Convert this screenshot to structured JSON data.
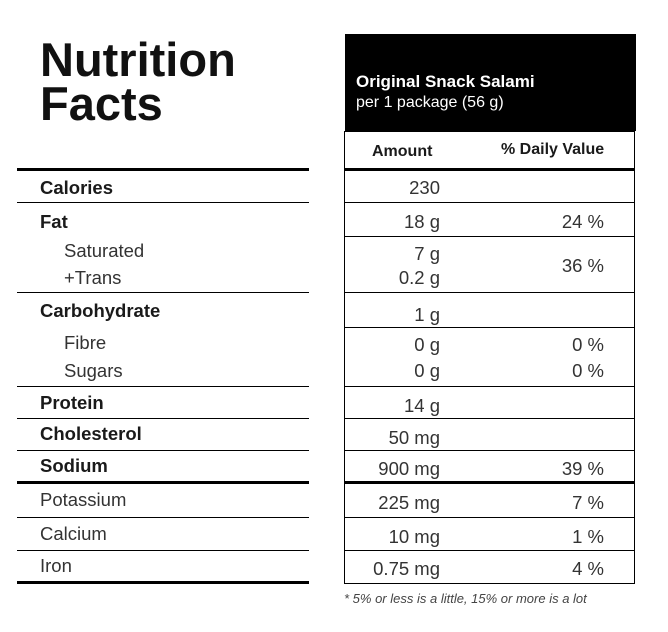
{
  "title": {
    "line1": "Nutrition",
    "line2": "Facts"
  },
  "header": {
    "product": "Original Snack Salami",
    "serving": "per 1 package (56 g)"
  },
  "columns": {
    "amount": "Amount",
    "daily_value": "% Daily Value"
  },
  "rows": {
    "calories": {
      "label": "Calories",
      "amount": "230",
      "dv": ""
    },
    "fat": {
      "label": "Fat",
      "amount": "18 g",
      "dv": "24 %"
    },
    "saturated": {
      "label": "Saturated",
      "amount": "7 g",
      "dv": "36 %"
    },
    "trans": {
      "label": "+Trans",
      "amount": "0.2 g"
    },
    "carbohydrate": {
      "label": "Carbohydrate",
      "amount": "1 g",
      "dv": ""
    },
    "fibre": {
      "label": "Fibre",
      "amount": "0 g",
      "dv": "0 %"
    },
    "sugars": {
      "label": "Sugars",
      "amount": "0 g",
      "dv": "0 %"
    },
    "protein": {
      "label": "Protein",
      "amount": "14 g",
      "dv": ""
    },
    "cholesterol": {
      "label": "Cholesterol",
      "amount": "50 mg",
      "dv": ""
    },
    "sodium": {
      "label": "Sodium",
      "amount": "900 mg",
      "dv": "39 %"
    },
    "potassium": {
      "label": "Potassium",
      "amount": "225 mg",
      "dv": "7 %"
    },
    "calcium": {
      "label": "Calcium",
      "amount": "10 mg",
      "dv": "1 %"
    },
    "iron": {
      "label": "Iron",
      "amount": "0.75 mg",
      "dv": "4 %"
    }
  },
  "footnote": "* 5% or less is a little, 15% or more is a lot"
}
